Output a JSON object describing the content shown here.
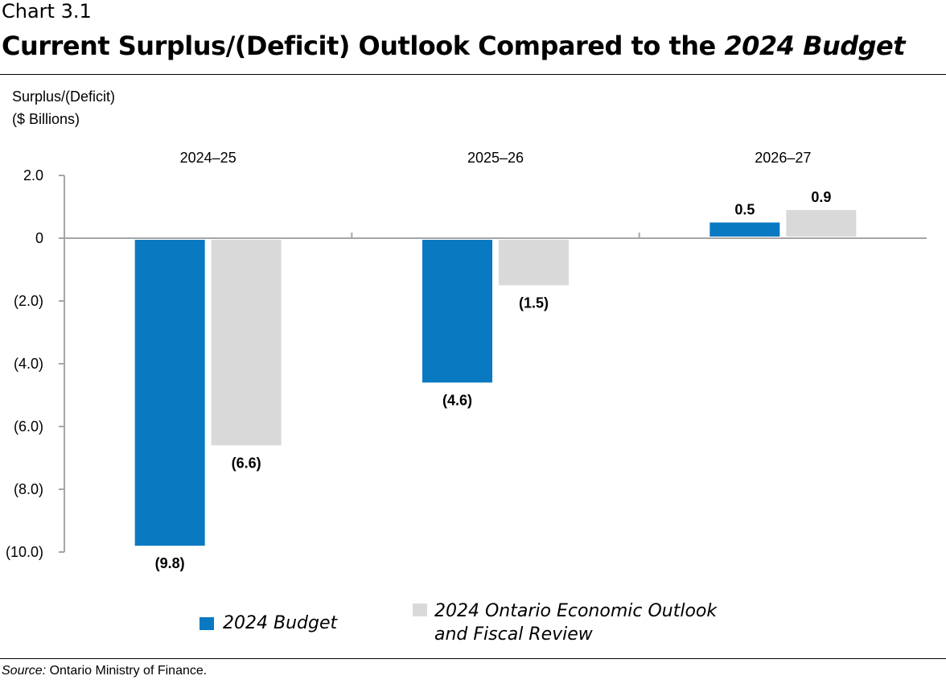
{
  "header": {
    "chart_label": "Chart 3.1",
    "title_main": "Current Surplus/(Deficit) Outlook Compared to the ",
    "title_italic": "2024 Budget"
  },
  "source": {
    "label": "Source:",
    "text": " Ontario Ministry of Finance."
  },
  "chart_data": {
    "type": "bar",
    "title": "Current Surplus/(Deficit) Outlook Compared to the 2024 Budget",
    "ylabel_lines": [
      "Surplus/(Deficit)",
      "($ Billions)"
    ],
    "categories": [
      "2024–25",
      "2025–26",
      "2026–27"
    ],
    "category_position": "top",
    "ylim": [
      -10,
      2
    ],
    "yticks": [
      2,
      0,
      -2,
      -4,
      -6,
      -8,
      -10
    ],
    "ytick_labels": [
      "2.0",
      "0",
      "(2.0)",
      "(4.0)",
      "(6.0)",
      "(8.0)",
      "(10.0)"
    ],
    "grid": false,
    "legend_placement": "bottom",
    "series": [
      {
        "name": "2024 Budget",
        "color": "#0979C2",
        "values": [
          -9.8,
          -4.6,
          0.5
        ],
        "labels": [
          "(9.8)",
          "(4.6)",
          "0.5"
        ]
      },
      {
        "name": "2024 Ontario Economic Outlook and Fiscal Review",
        "name_lines": [
          "2024 Ontario Economic Outlook",
          "and Fiscal Review"
        ],
        "color": "#D9D9D9",
        "values": [
          -6.6,
          -1.5,
          0.9
        ],
        "labels": [
          "(6.6)",
          "(1.5)",
          "0.9"
        ]
      }
    ]
  }
}
